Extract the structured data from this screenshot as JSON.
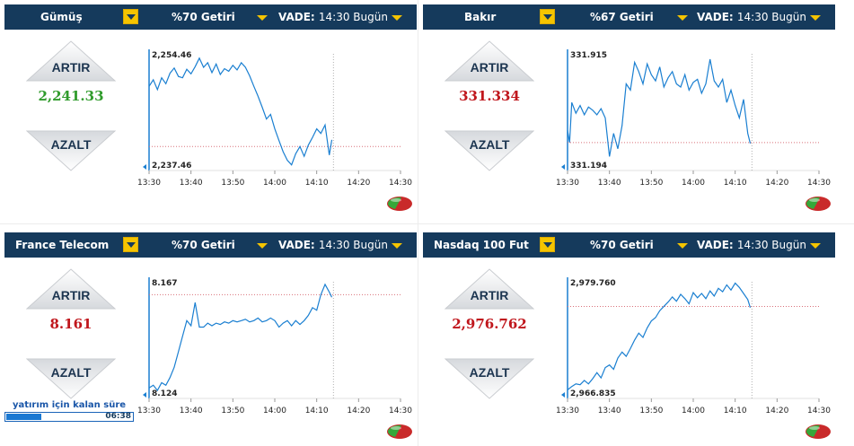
{
  "panels": [
    {
      "asset": "Gümüş",
      "ret_label": "%70 Getiri",
      "vade_label": "VADE:",
      "vade_value": "14:30 Bugün",
      "buy_label": "ARTIR",
      "sell_label": "AZALT",
      "price": "2,241.33",
      "price_color": "#2f9b2b",
      "chart_data": {
        "type": "line",
        "y_top_label": "2,254.46",
        "y_bottom_label": "2,237.46",
        "ylim": [
          2237.46,
          2254.46
        ],
        "x_ticks": [
          "13:30",
          "13:40",
          "13:50",
          "14:00",
          "14:10",
          "14:20",
          "14:30"
        ],
        "x_range": [
          0,
          60
        ],
        "reference_y": 2240.3,
        "cutoff_x": 44,
        "x": [
          0,
          1,
          2,
          3,
          4,
          5,
          6,
          7,
          8,
          9,
          10,
          11,
          12,
          13,
          14,
          15,
          16,
          17,
          18,
          19,
          20,
          21,
          22,
          23,
          24,
          25,
          26,
          27,
          28,
          29,
          30,
          31,
          32,
          33,
          34,
          35,
          36,
          37,
          38,
          39,
          40,
          41,
          42,
          43,
          43.6
        ],
        "y": [
          2249.5,
          2250.5,
          2249.0,
          2250.8,
          2249.9,
          2251.5,
          2252.3,
          2251.0,
          2250.8,
          2252.1,
          2251.4,
          2252.5,
          2253.8,
          2252.4,
          2253.1,
          2251.6,
          2252.9,
          2251.3,
          2252.2,
          2251.8,
          2252.7,
          2252.0,
          2253.1,
          2252.4,
          2251.1,
          2249.5,
          2248.0,
          2246.3,
          2244.5,
          2245.2,
          2243.0,
          2241.2,
          2239.5,
          2238.2,
          2237.5,
          2239.2,
          2240.3,
          2238.8,
          2240.5,
          2241.7,
          2243.0,
          2242.3,
          2243.6,
          2239.0,
          2241.33
        ]
      }
    },
    {
      "asset": "Bakır",
      "ret_label": "%67 Getiri",
      "vade_label": "VADE:",
      "vade_value": "14:30 Bugün",
      "buy_label": "ARTIR",
      "sell_label": "AZALT",
      "price": "331.334",
      "price_color": "#c0161c",
      "chart_data": {
        "type": "line",
        "y_top_label": "331.915",
        "y_bottom_label": "331.194",
        "ylim": [
          331.194,
          331.915
        ],
        "x_ticks": [
          "13:30",
          "13:40",
          "13:50",
          "14:00",
          "14:10",
          "14:20",
          "14:30"
        ],
        "x_range": [
          0,
          60
        ],
        "reference_y": 331.34,
        "cutoff_x": 44,
        "x": [
          0,
          0.5,
          1,
          2,
          3,
          4,
          5,
          6,
          7,
          8,
          9,
          10,
          11,
          12,
          13,
          14,
          15,
          16,
          17,
          18,
          19,
          20,
          21,
          22,
          23,
          24,
          25,
          26,
          27,
          28,
          29,
          30,
          31,
          32,
          33,
          34,
          35,
          36,
          37,
          38,
          39,
          40,
          41,
          42,
          43,
          43.6
        ],
        "y": [
          331.42,
          331.34,
          331.6,
          331.53,
          331.58,
          331.52,
          331.57,
          331.55,
          331.52,
          331.56,
          331.5,
          331.25,
          331.4,
          331.3,
          331.45,
          331.72,
          331.68,
          331.86,
          331.8,
          331.72,
          331.85,
          331.78,
          331.74,
          331.83,
          331.7,
          331.76,
          331.8,
          331.72,
          331.7,
          331.78,
          331.68,
          331.73,
          331.75,
          331.66,
          331.72,
          331.88,
          331.74,
          331.7,
          331.75,
          331.6,
          331.68,
          331.58,
          331.5,
          331.62,
          331.4,
          331.334
        ]
      }
    },
    {
      "asset": "France Telecom",
      "ret_label": "%70 Getiri",
      "vade_label": "VADE:",
      "vade_value": "14:30 Bugün",
      "buy_label": "ARTIR",
      "sell_label": "AZALT",
      "price": "8.161",
      "price_color": "#c0161c",
      "chart_data": {
        "type": "line",
        "y_top_label": "8.167",
        "y_bottom_label": "8.124",
        "ylim": [
          8.124,
          8.167
        ],
        "x_ticks": [
          "13:30",
          "13:40",
          "13:50",
          "14:00",
          "14:10",
          "14:20",
          "14:30"
        ],
        "x_range": [
          0,
          60
        ],
        "reference_y": 8.162,
        "cutoff_x": 44,
        "x": [
          0,
          1,
          2,
          3,
          4,
          5,
          6,
          7,
          8,
          9,
          10,
          11,
          12,
          13,
          14,
          15,
          16,
          17,
          18,
          19,
          20,
          21,
          22,
          23,
          24,
          25,
          26,
          27,
          28,
          29,
          30,
          31,
          32,
          33,
          34,
          35,
          36,
          37,
          38,
          39,
          40,
          41,
          42,
          43,
          43.6
        ],
        "y": [
          8.126,
          8.127,
          8.125,
          8.128,
          8.127,
          8.13,
          8.134,
          8.14,
          8.146,
          8.152,
          8.15,
          8.159,
          8.1495,
          8.1495,
          8.151,
          8.15,
          8.151,
          8.1505,
          8.1515,
          8.151,
          8.152,
          8.1515,
          8.152,
          8.1525,
          8.1515,
          8.152,
          8.153,
          8.1515,
          8.152,
          8.153,
          8.152,
          8.1495,
          8.151,
          8.152,
          8.15,
          8.152,
          8.1505,
          8.152,
          8.154,
          8.157,
          8.156,
          8.162,
          8.166,
          8.163,
          8.161
        ]
      }
    },
    {
      "asset": "Nasdaq 100 Fut",
      "ret_label": "%70 Getiri",
      "vade_label": "VADE:",
      "vade_value": "14:30 Bugün",
      "buy_label": "ARTIR",
      "sell_label": "AZALT",
      "price": "2,976.762",
      "price_color": "#c0161c",
      "chart_data": {
        "type": "line",
        "y_top_label": "2,979.760",
        "y_bottom_label": "2,966.835",
        "ylim": [
          2966.835,
          2979.76
        ],
        "x_ticks": [
          "13:30",
          "13:40",
          "13:50",
          "14:00",
          "14:10",
          "14:20",
          "14:30"
        ],
        "x_range": [
          0,
          60
        ],
        "reference_y": 2976.9,
        "cutoff_x": 44,
        "x": [
          0,
          1,
          2,
          3,
          4,
          5,
          6,
          7,
          8,
          9,
          10,
          11,
          12,
          13,
          14,
          15,
          16,
          17,
          18,
          19,
          20,
          21,
          22,
          23,
          24,
          25,
          26,
          27,
          28,
          29,
          30,
          31,
          32,
          33,
          34,
          35,
          36,
          37,
          38,
          39,
          40,
          41,
          42,
          43,
          43.6
        ],
        "y": [
          2967.2,
          2967.6,
          2967.9,
          2967.8,
          2968.3,
          2967.9,
          2968.5,
          2969.2,
          2968.6,
          2969.8,
          2970.1,
          2969.6,
          2970.9,
          2971.6,
          2971.1,
          2972.0,
          2973.0,
          2973.8,
          2973.3,
          2974.4,
          2975.2,
          2975.6,
          2976.4,
          2976.9,
          2977.4,
          2978.0,
          2977.5,
          2978.3,
          2977.8,
          2977.2,
          2978.5,
          2977.9,
          2978.4,
          2977.8,
          2978.7,
          2978.1,
          2979.0,
          2978.6,
          2979.4,
          2978.8,
          2979.6,
          2979.1,
          2978.4,
          2977.7,
          2976.762
        ]
      }
    }
  ],
  "timer": {
    "label": "yatırım için kalan süre",
    "time": "06:38",
    "progress": 0.28
  },
  "colors": {
    "header_bg": "#153a5c",
    "accent_yellow": "#f5c400",
    "line_blue": "#1a7fd1"
  },
  "icons": {
    "buy": "up-arrow-icon",
    "sell": "down-arrow-icon",
    "status": "green-red-pill-icon"
  }
}
